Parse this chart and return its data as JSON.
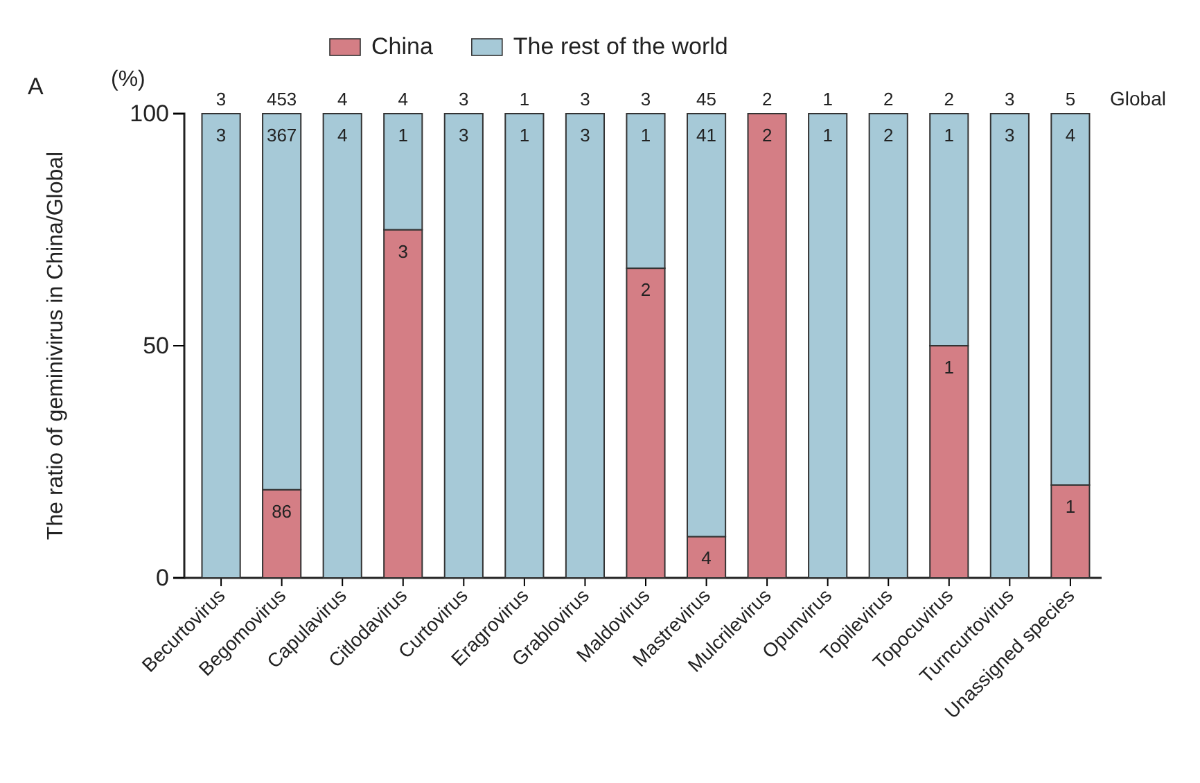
{
  "chart_data": {
    "type": "bar",
    "stacked": true,
    "ylabel": "The ratio of geminivirus in China/Global",
    "categories": [
      "Becurtovirus",
      "Begomovirus",
      "Capulavirus",
      "Citlodavirus",
      "Curtovirus",
      "Eragrovirus",
      "Grablovirus",
      "Maldovirus",
      "Mastrevirus",
      "Mulcrilevirus",
      "Opunvirus",
      "Topilevirus",
      "Topocuvirus",
      "Turncurtovirus",
      "Unassigned species"
    ],
    "series": [
      {
        "name": "China",
        "color": "#d47e85",
        "values": [
          0,
          19,
          0,
          75,
          0,
          0,
          0,
          66.7,
          8.9,
          100,
          0,
          0,
          50,
          0,
          20
        ]
      },
      {
        "name": "The rest of the world",
        "color": "#a6c9d7",
        "values": [
          100,
          81,
          100,
          25,
          100,
          100,
          100,
          33.3,
          91.1,
          0,
          100,
          100,
          50,
          100,
          80
        ]
      }
    ],
    "annotations": [
      "A",
      "(%)",
      "Global",
      {
        "text": "45",
        "x": "Mastrevirus",
        "y": 100
      },
      {
        "text": "41",
        "x": "Mastrevirus",
        "y": 100
      },
      {
        "text": "3",
        "x": "Becurtovirus",
        "y": 100
      },
      {
        "text": "453",
        "x": "Begomovirus",
        "y": 100
      },
      {
        "text": "4",
        "x": "Capulavirus",
        "y": 100
      },
      {
        "text": "4",
        "x": "Citlodavirus",
        "y": 100
      },
      {
        "text": "3",
        "x": "Curtovirus",
        "y": 100
      },
      {
        "text": "1",
        "x": "Eragrovirus",
        "y": 100
      },
      {
        "text": "3",
        "x": "Grablovirus",
        "y": 100
      },
      {
        "text": "3",
        "x": "Maldovirus",
        "y": 100
      },
      {
        "text": "2",
        "x": "Mulcrilevirus",
        "y": 100
      },
      {
        "text": "1",
        "x": "Opunvirus",
        "y": 100
      },
      {
        "text": "2",
        "x": "Topilevirus",
        "y": 100
      },
      {
        "text": "2",
        "x": "Topocuvirus",
        "y": 100
      },
      {
        "text": "3",
        "x": "Turncurtovirus",
        "y": 100
      },
      {
        "text": "5",
        "x": "Unassigned species",
        "y": 100
      },
      {
        "text": "3",
        "x": "Becurtovirus",
        "y": 100
      },
      {
        "text": "367",
        "x": "Begomovirus",
        "y": 100
      },
      {
        "text": "4",
        "x": "Capulavirus",
        "y": 100
      },
      {
        "text": "1",
        "x": "Citlodavirus",
        "y": 100
      },
      {
        "text": "3",
        "x": "Curtovirus",
        "y": 100
      },
      {
        "text": "1",
        "x": "Eragrovirus",
        "y": 100
      },
      {
        "text": "3",
        "x": "Grablovirus",
        "y": 100
      },
      {
        "text": "1",
        "x": "Maldovirus",
        "y": 100
      },
      {
        "text": "1",
        "x": "Opunvirus",
        "y": 100
      },
      {
        "text": "2",
        "x": "Topilevirus",
        "y": 100
      },
      {
        "text": "1",
        "x": "Topocuvirus",
        "y": 100
      },
      {
        "text": "3",
        "x": "Turncurtovirus",
        "y": 100
      },
      {
        "text": "4",
        "x": "Unassigned species",
        "y": 100
      },
      {
        "text": "86",
        "x": "Begomovirus",
        "y": 19
      },
      {
        "text": "3",
        "x": "Citlodavirus",
        "y": 75
      },
      {
        "text": "2",
        "x": "Maldovirus",
        "y": 66.7
      },
      {
        "text": "4",
        "x": "Mastrevirus",
        "y": 8.9
      },
      {
        "text": "2",
        "x": "Mulcrilevirus",
        "y": 100
      },
      {
        "text": "1",
        "x": "Topocuvirus",
        "y": 50
      },
      {
        "text": "1",
        "x": "Unassigned species",
        "y": 20
      }
    ],
    "ylim": [
      0,
      100
    ],
    "yticks": [
      0,
      50,
      100
    ],
    "grid": false,
    "legend": "top"
  }
}
